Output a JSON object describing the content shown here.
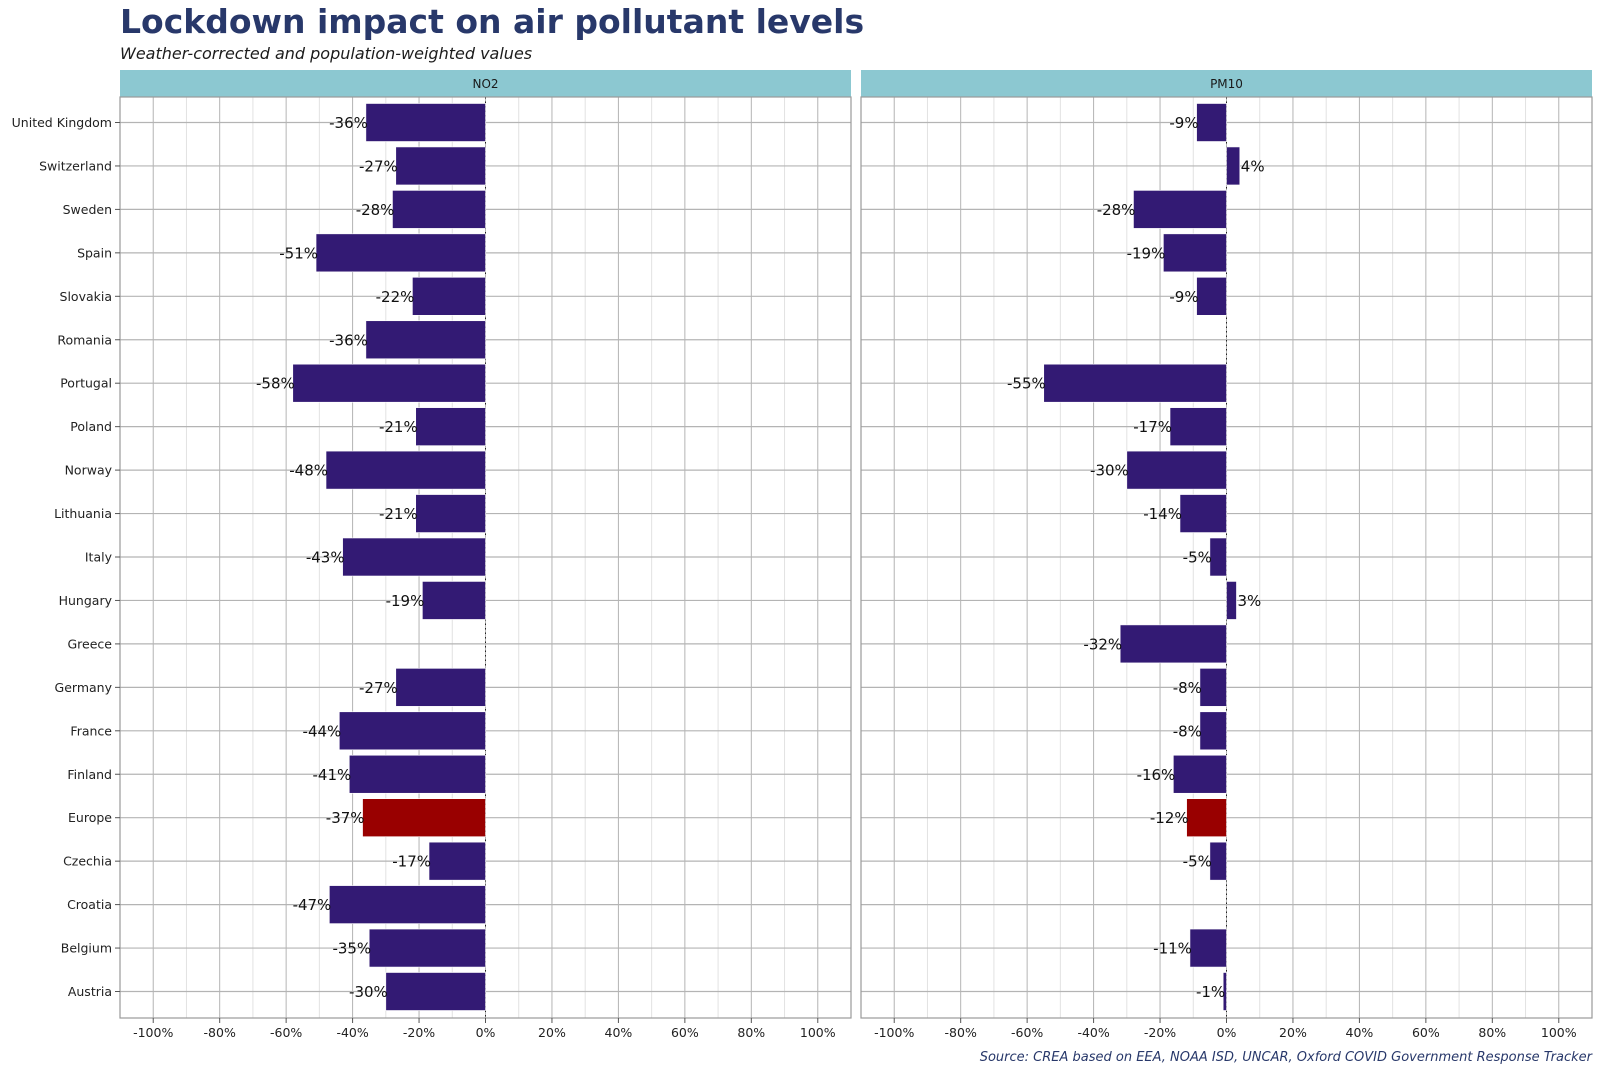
{
  "title": "Lockdown impact on air pollutant levels",
  "subtitle": "Weather-corrected and population-weighted values",
  "caption": "Source: CREA based on EEA, NOAA ISD, UNCAR, Oxford COVID Government Response Tracker",
  "colors": {
    "bar": "#331a74",
    "highlight": "#990000",
    "strip": "#8cc8d1",
    "grid_major": "#b4b4b4",
    "grid_minor": "#e2e2e2",
    "title": "#28386a"
  },
  "chart_data": {
    "type": "bar",
    "orientation": "horizontal",
    "facets": [
      "NO2",
      "PM10"
    ],
    "categories": [
      "United Kingdom",
      "Switzerland",
      "Sweden",
      "Spain",
      "Slovakia",
      "Romania",
      "Portugal",
      "Poland",
      "Norway",
      "Lithuania",
      "Italy",
      "Hungary",
      "Greece",
      "Germany",
      "France",
      "Finland",
      "Europe",
      "Czechia",
      "Croatia",
      "Belgium",
      "Austria"
    ],
    "highlight_category": "Europe",
    "series": [
      {
        "facet": "NO2",
        "values": [
          -36,
          -27,
          -28,
          -51,
          -22,
          -36,
          -58,
          -21,
          -48,
          -21,
          -43,
          -19,
          null,
          -27,
          -44,
          -41,
          -37,
          -17,
          -47,
          -35,
          -30
        ],
        "labels": [
          "-36%",
          "-27%",
          "-28%",
          "-51%",
          "-22%",
          "-36%",
          "-58%",
          "-21%",
          "-48%",
          "-21%",
          "-43%",
          "-19%",
          "",
          "-27%",
          "-44%",
          "-41%",
          "-37%",
          "-17%",
          "-47%",
          "-35%",
          "-30%"
        ]
      },
      {
        "facet": "PM10",
        "values": [
          -9,
          4,
          -28,
          -19,
          -9,
          null,
          -55,
          -17,
          -30,
          -14,
          -5,
          3,
          -32,
          -8,
          -8,
          -16,
          -12,
          -5,
          null,
          -11,
          -1
        ],
        "labels": [
          "-9%",
          "4%",
          "-28%",
          "-19%",
          "-9%",
          "",
          "-55%",
          "-17%",
          "-30%",
          "-14%",
          "-5%",
          "3%",
          "-32%",
          "-8%",
          "-8%",
          "-16%",
          "-12%",
          "-5%",
          "",
          "-11%",
          "-1%"
        ]
      }
    ],
    "xlim": [
      -110,
      110
    ],
    "x_ticks": [
      -100,
      -80,
      -60,
      -40,
      -20,
      0,
      20,
      40,
      60,
      80,
      100
    ],
    "x_tick_labels": [
      "-100%",
      "-80%",
      "-60%",
      "-40%",
      "-20%",
      "0%",
      "20%",
      "40%",
      "60%",
      "80%",
      "100%"
    ],
    "xlabel": "",
    "ylabel": "",
    "grid": true,
    "legend": "none"
  }
}
